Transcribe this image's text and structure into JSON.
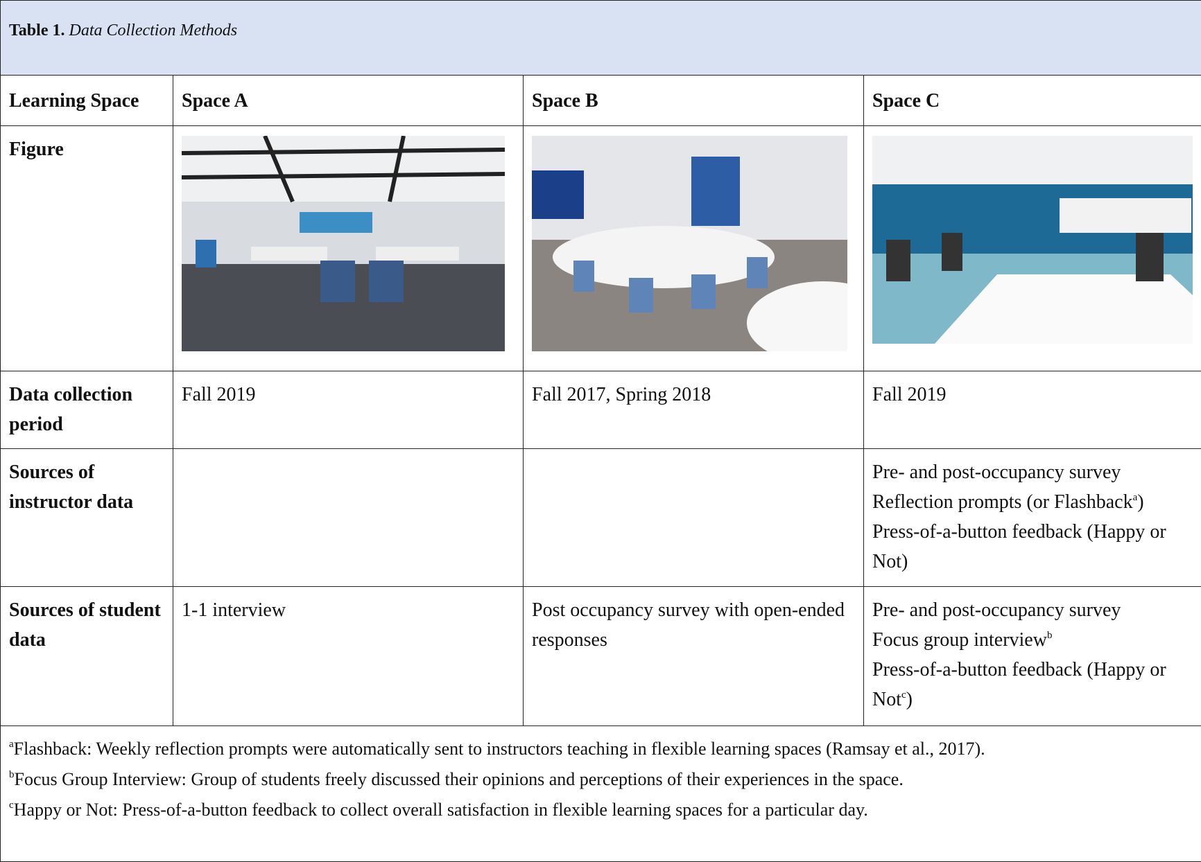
{
  "table": {
    "caption_label": "Table 1.",
    "caption_title": "Data Collection Methods",
    "header": [
      "Learning Space",
      "Space A",
      "Space B",
      "Space C"
    ],
    "figure_label": "Figure",
    "rows": [
      {
        "label": "Data collection period",
        "cells": [
          [
            "Fall 2019"
          ],
          [
            "Fall 2017, Spring 2018"
          ],
          [
            "Fall 2019"
          ]
        ]
      },
      {
        "label": "Sources of instructor data",
        "cells": [
          [],
          [],
          [
            {
              "text": "Pre- and post-occupancy survey"
            },
            {
              "text": "Reflection prompts (or Flashback",
              "sup": "a",
              "after": ")"
            },
            {
              "text": "Press-of-a-button feedback (Happy or Not)"
            }
          ]
        ]
      },
      {
        "label": "Sources of student data",
        "cells": [
          [
            "1-1 interview"
          ],
          [
            "Post occupancy survey with open-ended responses"
          ],
          [
            {
              "text": "Pre- and post-occupancy survey"
            },
            {
              "text": "Focus group interview",
              "sup": "b"
            },
            {
              "text": "Press-of-a-button feedback (Happy or Not",
              "sup": "c",
              "after": ")"
            }
          ]
        ]
      }
    ],
    "footnotes": [
      {
        "mark": "a",
        "text": "Flashback: Weekly reflection prompts were automatically sent to instructors teaching in flexible learning spaces (Ramsay et al., 2017)."
      },
      {
        "mark": "b",
        "text": "Focus Group Interview: Group of students freely discussed their opinions and perceptions of their experiences in the space."
      },
      {
        "mark": "c",
        "text": "Happy or Not: Press-of-a-button feedback to collect overall satisfaction in flexible learning spaces for a particular day."
      }
    ]
  }
}
